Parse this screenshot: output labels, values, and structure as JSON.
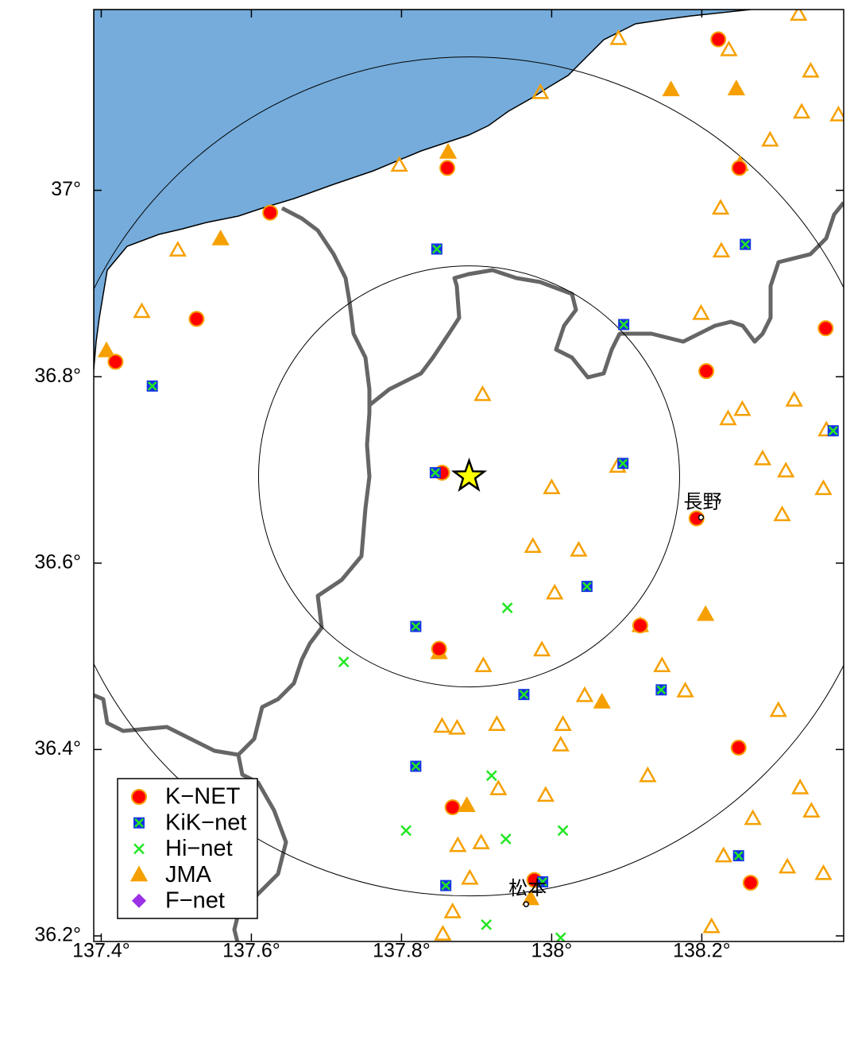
{
  "chart_data": {
    "type": "map",
    "xlim": [
      137.39,
      138.389
    ],
    "ylim": [
      36.194,
      37.194
    ],
    "xticks": [
      {
        "value": 137.4,
        "label": "137.4°"
      },
      {
        "value": 137.6,
        "label": "137.6°"
      },
      {
        "value": 137.8,
        "label": "137.8°"
      },
      {
        "value": 138,
        "label": "138°"
      },
      {
        "value": 138.2,
        "label": "138.2°"
      }
    ],
    "yticks": [
      {
        "value": 36.2,
        "label": "36.2°"
      },
      {
        "value": 36.4,
        "label": "36.4°"
      },
      {
        "value": 36.6,
        "label": "36.6°"
      },
      {
        "value": 36.8,
        "label": "36.8°"
      },
      {
        "value": 37,
        "label": "37°"
      }
    ],
    "epicenter": {
      "lon": 137.89,
      "lat": 36.693,
      "color": "#ffff00"
    },
    "cities": [
      {
        "label": "長野",
        "lon": 138.199,
        "lat": 36.649
      },
      {
        "label": "松本",
        "lon": 137.966,
        "lat": 36.234
      }
    ],
    "series": [
      {
        "name": "JMA",
        "color": "#f5a000",
        "marker": "triangle",
        "lon": [
          137.862,
          137.559,
          137.407,
          138.159,
          138.246,
          138.251,
          137.85,
          138.067,
          138.205,
          137.887,
          137.972,
          138.118,
          138.329,
          138.089,
          138.236,
          138.345,
          137.985,
          138.333,
          138.382,
          138.291,
          137.797,
          138.225,
          137.502,
          138.226,
          137.454,
          138.199,
          137.908,
          138.235,
          138.254,
          138.323,
          138.281,
          138.312,
          138.366,
          138.362,
          138.307,
          138.0,
          138.088,
          137.975,
          138.036,
          138.004,
          138.147,
          138.178,
          137.909,
          137.987,
          138.044,
          137.854,
          137.874,
          137.927,
          138.015,
          138.012,
          138.128,
          137.929,
          137.992,
          138.302,
          138.331,
          138.268,
          138.346,
          137.875,
          137.906,
          137.891,
          138.229,
          138.314,
          138.362,
          137.868,
          137.855,
          138.213
        ],
        "lat": [
          37.041,
          36.948,
          36.828,
          37.108,
          37.109,
          37.028,
          36.504,
          36.451,
          36.545,
          36.34,
          36.24,
          36.533,
          37.189,
          37.163,
          37.151,
          37.128,
          37.105,
          37.084,
          37.081,
          37.054,
          37.027,
          36.981,
          36.936,
          36.935,
          36.87,
          36.868,
          36.781,
          36.755,
          36.765,
          36.775,
          36.712,
          36.699,
          36.743,
          36.68,
          36.652,
          36.681,
          36.704,
          36.618,
          36.614,
          36.568,
          36.49,
          36.463,
          36.49,
          36.507,
          36.458,
          36.425,
          36.423,
          36.427,
          36.427,
          36.405,
          36.372,
          36.358,
          36.351,
          36.442,
          36.359,
          36.326,
          36.334,
          36.297,
          36.3,
          36.262,
          36.286,
          36.274,
          36.267,
          36.226,
          36.202,
          36.21
        ],
        "filled": [
          true,
          true,
          true,
          true,
          true,
          true,
          true,
          true,
          true,
          true,
          true,
          true,
          false,
          false,
          false,
          false,
          false,
          false,
          false,
          false,
          false,
          false,
          false,
          false,
          false,
          false,
          false,
          false,
          false,
          false,
          false,
          false,
          false,
          false,
          false,
          false,
          false,
          false,
          false,
          false,
          false,
          false,
          false,
          false,
          false,
          false,
          false,
          false,
          false,
          false,
          false,
          false,
          false,
          false,
          false,
          false,
          false,
          false,
          false,
          false,
          false,
          false,
          false,
          false,
          false,
          false
        ]
      },
      {
        "name": "K−NET",
        "color": "#ff0000",
        "marker": "circle",
        "lon": [
          138.222,
          137.861,
          138.25,
          137.625,
          137.527,
          137.419,
          138.365,
          138.206,
          137.854,
          138.193,
          138.118,
          137.85,
          138.249,
          137.868,
          138.265,
          137.977
        ],
        "lat": [
          37.162,
          37.024,
          37.024,
          36.976,
          36.862,
          36.816,
          36.852,
          36.806,
          36.697,
          36.648,
          36.533,
          36.508,
          36.402,
          36.338,
          36.257,
          36.26
        ]
      },
      {
        "name": "KiK−net",
        "color": "#1432e6",
        "marker": "square",
        "lon": [
          137.847,
          138.258,
          138.096,
          137.468,
          137.845,
          138.095,
          138.375,
          138.047,
          137.819,
          137.963,
          138.146,
          137.819,
          138.249,
          137.859,
          137.988
        ],
        "lat": [
          36.937,
          36.942,
          36.856,
          36.79,
          36.697,
          36.707,
          36.742,
          36.575,
          36.532,
          36.459,
          36.464,
          36.382,
          36.286,
          36.254,
          36.258
        ]
      },
      {
        "name": "Hi−net",
        "color": "#22e622",
        "marker": "cross",
        "lon": [
          137.941,
          137.723,
          137.92,
          137.806,
          137.939,
          138.015,
          137.913,
          138.012
        ],
        "lat": [
          36.552,
          36.494,
          36.372,
          36.313,
          36.304,
          36.313,
          36.212,
          36.198
        ]
      },
      {
        "name": "F−net",
        "color": "#9b30e6",
        "marker": "diamond",
        "lon": [],
        "lat": []
      }
    ],
    "legend_order": [
      1,
      2,
      3,
      0,
      4
    ]
  }
}
